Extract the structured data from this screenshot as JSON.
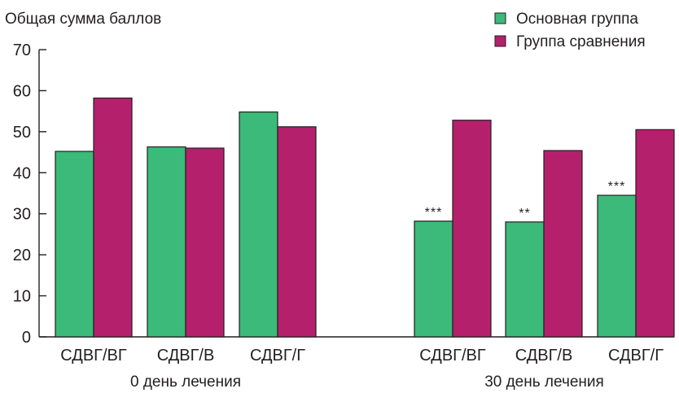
{
  "chart_data": {
    "type": "bar",
    "ylabel": "Общая сумма баллов",
    "ylim": [
      0,
      70
    ],
    "yticks": [
      0,
      10,
      20,
      30,
      40,
      50,
      60,
      70
    ],
    "grid": false,
    "legend_position": "top-right",
    "colors": {
      "main": "#3bba7a",
      "comparison": "#b5206d"
    },
    "groups": [
      {
        "label": "0 день лечения",
        "categories": [
          "СДВГ/ВГ",
          "СДВГ/В",
          "СДВГ/Г"
        ],
        "series": [
          {
            "name": "Основная группа",
            "values": [
              45.2,
              46.3,
              54.8
            ]
          },
          {
            "name": "Группа сравнения",
            "values": [
              58.2,
              46.0,
              51.2
            ]
          }
        ],
        "annotations": [
          "",
          "",
          ""
        ]
      },
      {
        "label": "30 день лечения",
        "categories": [
          "СДВГ/ВГ",
          "СДВГ/В",
          "СДВГ/Г"
        ],
        "series": [
          {
            "name": "Основная группа",
            "values": [
              28.2,
              28.0,
              34.5
            ]
          },
          {
            "name": "Группа сравнения",
            "values": [
              52.8,
              45.4,
              50.5
            ]
          }
        ],
        "annotations": [
          "***",
          "**",
          "***"
        ]
      }
    ]
  }
}
